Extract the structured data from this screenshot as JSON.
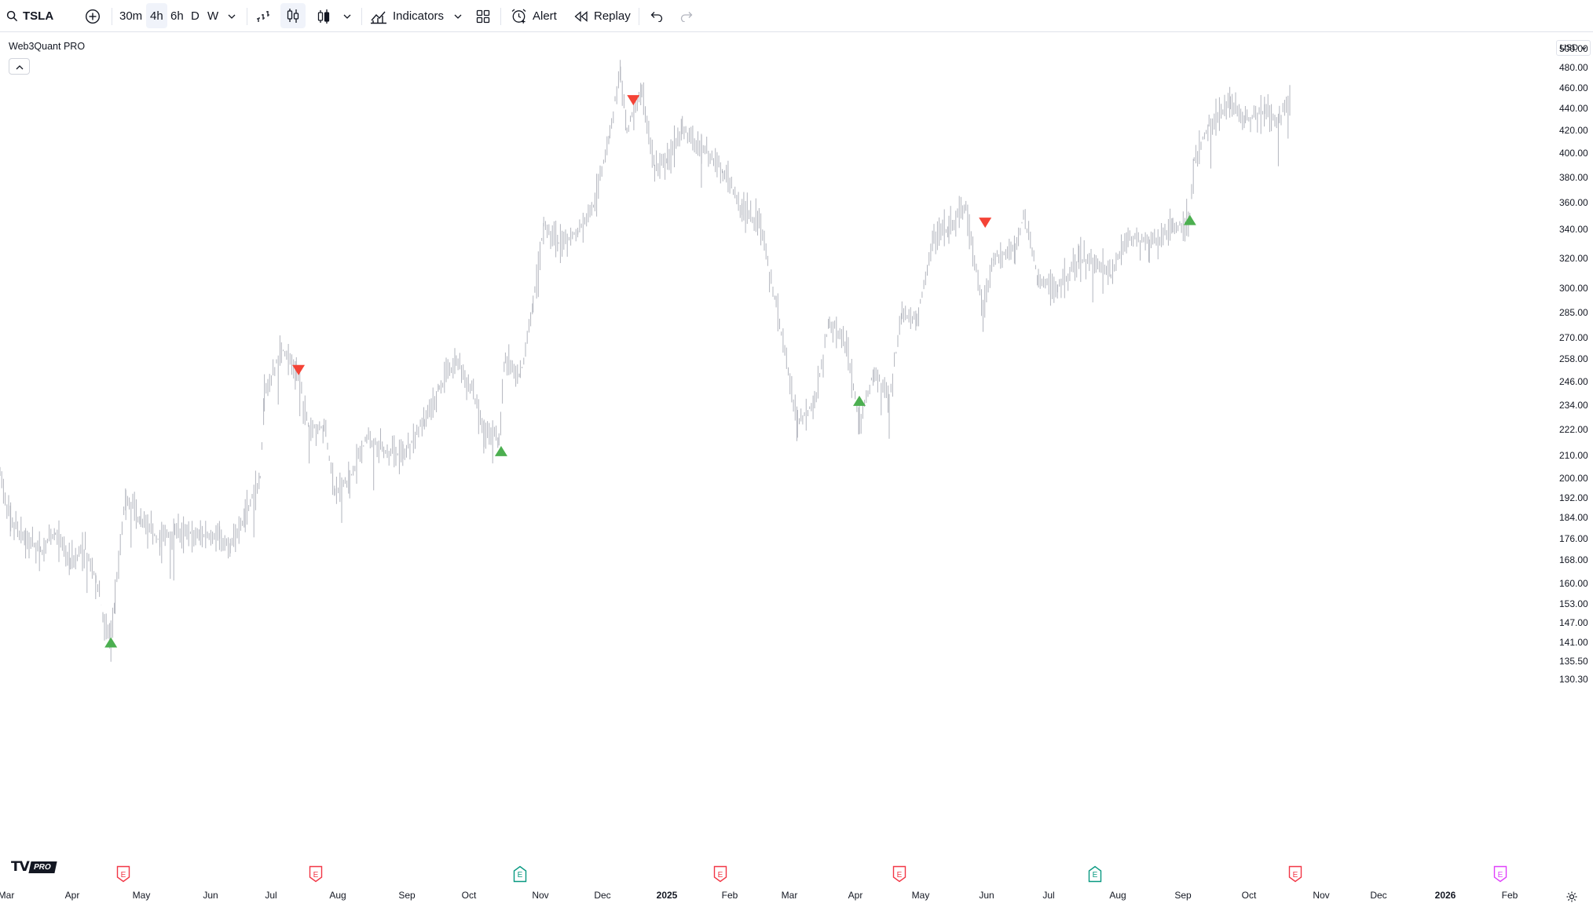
{
  "toolbar": {
    "symbol": "TSLA",
    "timeframes": [
      "30m",
      "4h",
      "6h",
      "D",
      "W"
    ],
    "active_timeframe": "4h",
    "indicators_label": "Indicators",
    "alert_label": "Alert",
    "replay_label": "Replay",
    "icons": [
      "search-icon",
      "add-symbol-icon",
      "chevron-down-icon",
      "bar-style-icon",
      "candle-style-icon",
      "candle-hollow-icon",
      "indicators-icon",
      "layout-icon",
      "alert-icon",
      "replay-icon",
      "undo-icon",
      "redo-icon"
    ]
  },
  "legend": {
    "indicator_name": "Web3Quant PRO"
  },
  "price_scale": {
    "currency": "USD",
    "ticks": [
      "500.00",
      "480.00",
      "460.00",
      "440.00",
      "420.00",
      "400.00",
      "380.00",
      "360.00",
      "340.00",
      "320.00",
      "300.00",
      "285.00",
      "270.00",
      "258.00",
      "246.00",
      "234.00",
      "222.00",
      "210.00",
      "200.00",
      "192.00",
      "184.00",
      "176.00",
      "168.00",
      "160.00",
      "153.00",
      "147.00",
      "141.00",
      "135.50",
      "130.30"
    ]
  },
  "time_scale": {
    "ticks": [
      {
        "label": "Mar",
        "bold": false
      },
      {
        "label": "Apr",
        "bold": false
      },
      {
        "label": "May",
        "bold": false
      },
      {
        "label": "Jun",
        "bold": false
      },
      {
        "label": "Jul",
        "bold": false
      },
      {
        "label": "Aug",
        "bold": false
      },
      {
        "label": "Sep",
        "bold": false
      },
      {
        "label": "Oct",
        "bold": false
      },
      {
        "label": "Nov",
        "bold": false
      },
      {
        "label": "Dec",
        "bold": false
      },
      {
        "label": "2025",
        "bold": true
      },
      {
        "label": "Feb",
        "bold": false
      },
      {
        "label": "Mar",
        "bold": false
      },
      {
        "label": "Apr",
        "bold": false
      },
      {
        "label": "May",
        "bold": false
      },
      {
        "label": "Jun",
        "bold": false
      },
      {
        "label": "Jul",
        "bold": false
      },
      {
        "label": "Aug",
        "bold": false
      },
      {
        "label": "Sep",
        "bold": false
      },
      {
        "label": "Oct",
        "bold": false
      },
      {
        "label": "Nov",
        "bold": false
      },
      {
        "label": "Dec",
        "bold": false
      },
      {
        "label": "2026",
        "bold": true
      },
      {
        "label": "Feb",
        "bold": false
      }
    ]
  },
  "branding": {
    "logo_text": "TV",
    "badge": "PRO"
  },
  "earnings_markers": [
    {
      "label": "E",
      "kind": "reported-miss",
      "color": "#f23645"
    },
    {
      "label": "E",
      "kind": "reported-miss",
      "color": "#f23645"
    },
    {
      "label": "E",
      "kind": "reported-beat",
      "color": "#089981"
    },
    {
      "label": "E",
      "kind": "reported-miss",
      "color": "#f23645"
    },
    {
      "label": "E",
      "kind": "reported-miss",
      "color": "#f23645"
    },
    {
      "label": "E",
      "kind": "reported-beat",
      "color": "#089981"
    },
    {
      "label": "E",
      "kind": "reported-miss",
      "color": "#f23645"
    },
    {
      "label": "E",
      "kind": "upcoming",
      "color": "#e040fb"
    }
  ],
  "chart_data": {
    "type": "line",
    "title": "",
    "xlabel": "",
    "ylabel": "",
    "symbol": "TSLA",
    "interval": "4h",
    "y_scale": "log",
    "ylim": [
      130.3,
      505
    ],
    "x_range": [
      "2024-03-01",
      "2026-02-28"
    ],
    "bar_color": "#b2b5be",
    "grid": false,
    "series": [
      {
        "values": [
          {
            "date": "2024-03-01",
            "price": 202
          },
          {
            "date": "2024-03-06",
            "price": 182
          },
          {
            "date": "2024-03-13",
            "price": 176
          },
          {
            "date": "2024-03-20",
            "price": 171
          },
          {
            "date": "2024-03-27",
            "price": 178
          },
          {
            "date": "2024-04-03",
            "price": 168
          },
          {
            "date": "2024-04-10",
            "price": 172
          },
          {
            "date": "2024-04-15",
            "price": 162
          },
          {
            "date": "2024-04-19",
            "price": 147
          },
          {
            "date": "2024-04-22",
            "price": 142
          },
          {
            "date": "2024-04-24",
            "price": 155
          },
          {
            "date": "2024-04-29",
            "price": 194
          },
          {
            "date": "2024-05-06",
            "price": 182
          },
          {
            "date": "2024-05-15",
            "price": 175
          },
          {
            "date": "2024-05-22",
            "price": 179
          },
          {
            "date": "2024-06-03",
            "price": 177
          },
          {
            "date": "2024-06-12",
            "price": 176
          },
          {
            "date": "2024-06-17",
            "price": 172
          },
          {
            "date": "2024-06-24",
            "price": 185
          },
          {
            "date": "2024-07-01",
            "price": 201
          },
          {
            "date": "2024-07-03",
            "price": 238
          },
          {
            "date": "2024-07-11",
            "price": 264
          },
          {
            "date": "2024-07-18",
            "price": 253
          },
          {
            "date": "2024-07-24",
            "price": 222
          },
          {
            "date": "2024-07-31",
            "price": 224
          },
          {
            "date": "2024-08-05",
            "price": 195
          },
          {
            "date": "2024-08-12",
            "price": 200
          },
          {
            "date": "2024-08-20",
            "price": 218
          },
          {
            "date": "2024-08-28",
            "price": 212
          },
          {
            "date": "2024-09-06",
            "price": 210
          },
          {
            "date": "2024-09-16",
            "price": 227
          },
          {
            "date": "2024-09-23",
            "price": 242
          },
          {
            "date": "2024-10-01",
            "price": 257
          },
          {
            "date": "2024-10-09",
            "price": 240
          },
          {
            "date": "2024-10-14",
            "price": 220
          },
          {
            "date": "2024-10-21",
            "price": 218
          },
          {
            "date": "2024-10-24",
            "price": 260
          },
          {
            "date": "2024-10-31",
            "price": 248
          },
          {
            "date": "2024-11-06",
            "price": 290
          },
          {
            "date": "2024-11-11",
            "price": 345
          },
          {
            "date": "2024-11-18",
            "price": 330
          },
          {
            "date": "2024-11-27",
            "price": 338
          },
          {
            "date": "2024-12-05",
            "price": 360
          },
          {
            "date": "2024-12-12",
            "price": 418
          },
          {
            "date": "2024-12-17",
            "price": 480
          },
          {
            "date": "2024-12-20",
            "price": 421
          },
          {
            "date": "2024-12-27",
            "price": 455
          },
          {
            "date": "2025-01-02",
            "price": 388
          },
          {
            "date": "2025-01-08",
            "price": 395
          },
          {
            "date": "2025-01-15",
            "price": 420
          },
          {
            "date": "2025-01-24",
            "price": 408
          },
          {
            "date": "2025-02-03",
            "price": 385
          },
          {
            "date": "2025-02-12",
            "price": 355
          },
          {
            "date": "2025-02-20",
            "price": 345
          },
          {
            "date": "2025-02-28",
            "price": 290
          },
          {
            "date": "2025-03-10",
            "price": 225
          },
          {
            "date": "2025-03-18",
            "price": 235
          },
          {
            "date": "2025-03-25",
            "price": 280
          },
          {
            "date": "2025-04-02",
            "price": 265
          },
          {
            "date": "2025-04-08",
            "price": 225
          },
          {
            "date": "2025-04-15",
            "price": 252
          },
          {
            "date": "2025-04-22",
            "price": 236
          },
          {
            "date": "2025-04-28",
            "price": 285
          },
          {
            "date": "2025-05-05",
            "price": 280
          },
          {
            "date": "2025-05-13",
            "price": 335
          },
          {
            "date": "2025-05-20",
            "price": 340
          },
          {
            "date": "2025-05-28",
            "price": 358
          },
          {
            "date": "2025-06-05",
            "price": 285
          },
          {
            "date": "2025-06-10",
            "price": 320
          },
          {
            "date": "2025-06-20",
            "price": 325
          },
          {
            "date": "2025-06-24",
            "price": 350
          },
          {
            "date": "2025-07-01",
            "price": 305
          },
          {
            "date": "2025-07-10",
            "price": 300
          },
          {
            "date": "2025-07-20",
            "price": 320
          },
          {
            "date": "2025-07-28",
            "price": 315
          },
          {
            "date": "2025-08-04",
            "price": 308
          },
          {
            "date": "2025-08-12",
            "price": 335
          },
          {
            "date": "2025-08-22",
            "price": 330
          },
          {
            "date": "2025-09-02",
            "price": 340
          },
          {
            "date": "2025-09-10",
            "price": 348
          },
          {
            "date": "2025-09-12",
            "price": 395
          },
          {
            "date": "2025-09-19",
            "price": 425
          },
          {
            "date": "2025-09-29",
            "price": 445
          },
          {
            "date": "2025-10-06",
            "price": 430
          },
          {
            "date": "2025-10-15",
            "price": 438
          },
          {
            "date": "2025-10-22",
            "price": 430
          },
          {
            "date": "2025-10-27",
            "price": 452
          }
        ]
      }
    ],
    "signals": [
      {
        "type": "buy",
        "date": "2024-04-22",
        "price": 141
      },
      {
        "type": "sell",
        "date": "2024-07-19",
        "price": 252
      },
      {
        "type": "buy",
        "date": "2024-10-22",
        "price": 212
      },
      {
        "type": "sell",
        "date": "2024-12-23",
        "price": 448
      },
      {
        "type": "buy",
        "date": "2025-04-08",
        "price": 236
      },
      {
        "type": "sell",
        "date": "2025-06-06",
        "price": 345
      },
      {
        "type": "buy",
        "date": "2025-09-10",
        "price": 347
      }
    ]
  }
}
